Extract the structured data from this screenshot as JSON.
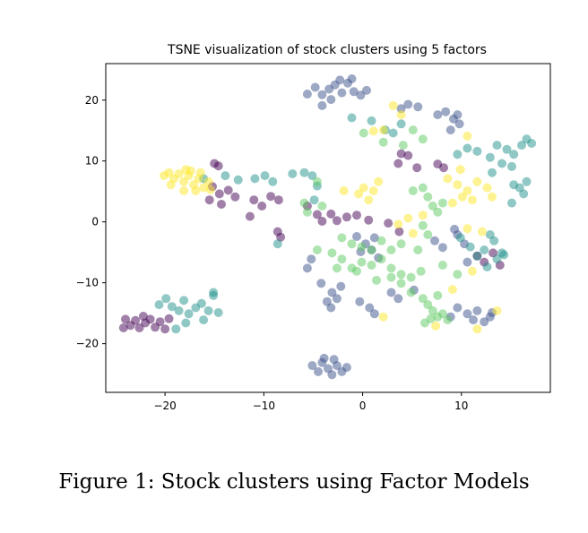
{
  "caption": "Figure 1: Stock clusters using Factor Models",
  "chart_data": {
    "type": "scatter",
    "title": "TSNE visualization of stock clusters using 5 factors",
    "xlabel": "",
    "ylabel": "",
    "xlim": [
      -26,
      19
    ],
    "ylim": [
      -28,
      26
    ],
    "xticks": [
      -20,
      -10,
      0,
      10
    ],
    "yticks": [
      -20,
      -10,
      0,
      10,
      20
    ],
    "xtick_labels": [
      "−20",
      "−10",
      "0",
      "10"
    ],
    "ytick_labels": [
      "−20",
      "−10",
      "0",
      "10",
      "20"
    ],
    "grid": false,
    "legend": "none",
    "colormap": "viridis",
    "point_alpha": 0.5,
    "series": [
      {
        "color": "#440154",
        "points": [
          [
            -24,
            -16
          ],
          [
            -23.5,
            -17
          ],
          [
            -23,
            -16.2
          ],
          [
            -22.6,
            -17.4
          ],
          [
            -22,
            -16.6
          ],
          [
            -21.5,
            -16
          ],
          [
            -21,
            -17.3
          ],
          [
            -20.5,
            -16.4
          ],
          [
            -20,
            -17.6
          ],
          [
            -19.6,
            -15.9
          ],
          [
            -24.2,
            -17.4
          ],
          [
            -22.2,
            -15.5
          ],
          [
            -15,
            9.6
          ],
          [
            -14.6,
            9.2
          ],
          [
            -15.2,
            5.8
          ],
          [
            -14.5,
            4.6
          ],
          [
            -15.5,
            3.6
          ],
          [
            -14.3,
            2.9
          ],
          [
            -13.6,
            5.2
          ],
          [
            -12.9,
            4.1
          ],
          [
            -11,
            3.6
          ],
          [
            -10.2,
            2.6
          ],
          [
            -11.4,
            0.9
          ],
          [
            -9.3,
            4.2
          ],
          [
            -8.5,
            3.6
          ],
          [
            -8.6,
            -1.6
          ],
          [
            -8.3,
            -2.5
          ],
          [
            -5.6,
            2.6
          ],
          [
            -4.6,
            1.2
          ],
          [
            -4.1,
            0.1
          ],
          [
            -3.2,
            1.3
          ],
          [
            -2.6,
            0.2
          ],
          [
            -1.6,
            0.8
          ],
          [
            -0.6,
            1.1
          ],
          [
            0.6,
            0.3
          ],
          [
            3.9,
            11.2
          ],
          [
            4.6,
            10.9
          ],
          [
            3.6,
            9.6
          ],
          [
            5.5,
            8.9
          ],
          [
            7.6,
            9.5
          ],
          [
            8.2,
            8.9
          ],
          [
            2.6,
            -0.2
          ],
          [
            3.7,
            -1.6
          ],
          [
            11.6,
            -5.6
          ],
          [
            12.3,
            -6.6
          ],
          [
            13.2,
            -5.1
          ],
          [
            13.9,
            -7.1
          ]
        ]
      },
      {
        "color": "#3b528b",
        "points": [
          [
            -5.6,
            21
          ],
          [
            -4.8,
            22.1
          ],
          [
            -4.1,
            20.9
          ],
          [
            -3.4,
            21.8
          ],
          [
            -2.8,
            22.5
          ],
          [
            -2.1,
            21.2
          ],
          [
            -1.5,
            22.8
          ],
          [
            -0.9,
            21.4
          ],
          [
            -0.2,
            20.8
          ],
          [
            -3.2,
            20.1
          ],
          [
            -2.3,
            23.3
          ],
          [
            -1.1,
            23.5
          ],
          [
            0.4,
            21.6
          ],
          [
            -4.1,
            19.1
          ],
          [
            3.9,
            18.6
          ],
          [
            4.6,
            19.3
          ],
          [
            5.6,
            18.9
          ],
          [
            7.6,
            17.6
          ],
          [
            8.4,
            18.1
          ],
          [
            9.2,
            16.9
          ],
          [
            9.6,
            17.6
          ],
          [
            8.9,
            15.1
          ],
          [
            9.8,
            16.1
          ],
          [
            -0.6,
            -2.4
          ],
          [
            0.3,
            -3.6
          ],
          [
            1.2,
            -2.6
          ],
          [
            -0.2,
            -4.9
          ],
          [
            1.6,
            -5.9
          ],
          [
            0.9,
            -4.6
          ],
          [
            -5.2,
            -6.1
          ],
          [
            -5.6,
            -7.6
          ],
          [
            -4.2,
            -10.1
          ],
          [
            -3.1,
            -11.6
          ],
          [
            -2.6,
            -12.6
          ],
          [
            -3.6,
            -13.1
          ],
          [
            -2.2,
            -10.6
          ],
          [
            -3.2,
            -14.1
          ],
          [
            -0.3,
            -13.1
          ],
          [
            0.7,
            -14.1
          ],
          [
            1.2,
            -15.1
          ],
          [
            2.9,
            -11.6
          ],
          [
            3.6,
            -12.6
          ],
          [
            5.2,
            -11.2
          ],
          [
            7.3,
            -3.1
          ],
          [
            8.1,
            -4.2
          ],
          [
            9.6,
            -2.1
          ],
          [
            10.3,
            -3.6
          ],
          [
            9.3,
            -1.2
          ],
          [
            10.6,
            -6.6
          ],
          [
            9.6,
            -14.1
          ],
          [
            10.6,
            -15.1
          ],
          [
            11.2,
            -16.1
          ],
          [
            12.3,
            -16.4
          ],
          [
            11.6,
            -14.6
          ],
          [
            13.1,
            -14.9
          ],
          [
            12.9,
            -15.6
          ],
          [
            8.9,
            -15.6
          ],
          [
            -5.1,
            -23.6
          ],
          [
            -4.5,
            -24.6
          ],
          [
            -4.1,
            -23.1
          ],
          [
            -3.5,
            -24.1
          ],
          [
            -3.1,
            -25.1
          ],
          [
            -2.6,
            -23.6
          ],
          [
            -2.1,
            -24.6
          ],
          [
            -1.6,
            -23.9
          ],
          [
            -3.9,
            -22.4
          ],
          [
            -2.9,
            -22.6
          ]
        ]
      },
      {
        "color": "#21918c",
        "points": [
          [
            -20.6,
            -13.6
          ],
          [
            -19.9,
            -12.6
          ],
          [
            -19.3,
            -13.9
          ],
          [
            -18.6,
            -14.6
          ],
          [
            -18.1,
            -12.9
          ],
          [
            -17.6,
            -15.1
          ],
          [
            -16.9,
            -14.1
          ],
          [
            -16.3,
            -13.4
          ],
          [
            -15.6,
            -14.6
          ],
          [
            -15.1,
            -12.1
          ],
          [
            -14.6,
            -14.9
          ],
          [
            -16.1,
            -16.1
          ],
          [
            -17.9,
            -16.6
          ],
          [
            -18.9,
            -17.6
          ],
          [
            -15.1,
            -11.6
          ],
          [
            -16.1,
            7.1
          ],
          [
            -13.9,
            7.6
          ],
          [
            -12.6,
            6.9
          ],
          [
            -10.9,
            7.1
          ],
          [
            -9.9,
            7.6
          ],
          [
            -9.1,
            6.6
          ],
          [
            -7.1,
            7.9
          ],
          [
            -5.9,
            8.1
          ],
          [
            -5.1,
            7.6
          ],
          [
            -4.6,
            5.9
          ],
          [
            -4.9,
            3.6
          ],
          [
            -8.6,
            -3.6
          ],
          [
            -1.1,
            17.1
          ],
          [
            0.9,
            16.6
          ],
          [
            2.3,
            15.1
          ],
          [
            3.1,
            14.6
          ],
          [
            3.9,
            16.1
          ],
          [
            9.6,
            11.1
          ],
          [
            10.6,
            12.1
          ],
          [
            11.6,
            11.6
          ],
          [
            12.9,
            10.6
          ],
          [
            13.6,
            12.6
          ],
          [
            14.6,
            11.9
          ],
          [
            15.3,
            11.1
          ],
          [
            16.1,
            12.6
          ],
          [
            16.6,
            13.6
          ],
          [
            17.1,
            12.9
          ],
          [
            14.1,
            9.6
          ],
          [
            15.1,
            9.1
          ],
          [
            13.1,
            8.1
          ],
          [
            16.3,
            4.6
          ],
          [
            15.9,
            5.6
          ],
          [
            15.1,
            3.1
          ],
          [
            16.6,
            6.6
          ],
          [
            15.3,
            6.1
          ],
          [
            9.9,
            -2.6
          ],
          [
            10.9,
            -4.1
          ],
          [
            11.6,
            -5.6
          ],
          [
            12.3,
            -4.6
          ],
          [
            13.3,
            -3.1
          ],
          [
            12.9,
            -2.1
          ],
          [
            14.1,
            -5.1
          ],
          [
            13.6,
            -6.1
          ],
          [
            12.6,
            -7.4
          ],
          [
            14.3,
            -5.4
          ]
        ]
      },
      {
        "color": "#5ec962",
        "points": [
          [
            -2.1,
            -2.6
          ],
          [
            -1.1,
            -3.6
          ],
          [
            -0.1,
            -4.1
          ],
          [
            0.9,
            -4.6
          ],
          [
            1.9,
            -3.1
          ],
          [
            2.9,
            -4.6
          ],
          [
            3.9,
            -3.6
          ],
          [
            1.9,
            -6.1
          ],
          [
            0.9,
            -7.1
          ],
          [
            -0.1,
            -6.6
          ],
          [
            -1.1,
            -7.6
          ],
          [
            -2.1,
            -6.1
          ],
          [
            -3.1,
            -5.1
          ],
          [
            -0.6,
            -8.1
          ],
          [
            2.9,
            -7.6
          ],
          [
            3.9,
            -8.6
          ],
          [
            4.9,
            -9.1
          ],
          [
            5.9,
            -8.1
          ],
          [
            -2.6,
            -7.6
          ],
          [
            -4.6,
            -4.6
          ],
          [
            1.4,
            -9.6
          ],
          [
            6.1,
            -12.6
          ],
          [
            6.6,
            -13.6
          ],
          [
            7.1,
            -14.6
          ],
          [
            7.6,
            -15.6
          ],
          [
            6.3,
            -16.6
          ],
          [
            8.1,
            -15.1
          ],
          [
            8.6,
            -16.1
          ],
          [
            6.9,
            -15.9
          ],
          [
            7.6,
            -12.1
          ],
          [
            2.9,
            -9.1
          ],
          [
            3.9,
            -10.1
          ],
          [
            4.9,
            -11.6
          ],
          [
            5.1,
            5.1
          ],
          [
            6.1,
            5.6
          ],
          [
            6.6,
            4.1
          ],
          [
            7.1,
            2.6
          ],
          [
            7.6,
            1.6
          ],
          [
            8.1,
            3.1
          ],
          [
            6.1,
            -0.6
          ],
          [
            6.6,
            -2.1
          ],
          [
            5.6,
            -4.6
          ],
          [
            -4.6,
            6.6
          ],
          [
            -4.1,
            2.6
          ],
          [
            -5.6,
            1.6
          ],
          [
            -5.9,
            3.1
          ],
          [
            0.1,
            14.6
          ],
          [
            2.1,
            13.1
          ],
          [
            4.1,
            12.6
          ],
          [
            5.1,
            15.1
          ],
          [
            6.1,
            13.6
          ],
          [
            8.1,
            -7.1
          ],
          [
            9.6,
            -8.6
          ]
        ]
      },
      {
        "color": "#fde725",
        "points": [
          [
            -20.1,
            7.6
          ],
          [
            -19.6,
            8.1
          ],
          [
            -19.1,
            7.1
          ],
          [
            -18.6,
            7.9
          ],
          [
            -18.1,
            6.6
          ],
          [
            -17.6,
            7.6
          ],
          [
            -17.1,
            6.1
          ],
          [
            -16.6,
            7.1
          ],
          [
            -16.1,
            5.6
          ],
          [
            -15.6,
            6.6
          ],
          [
            -18.1,
            5.1
          ],
          [
            -17.4,
            8.4
          ],
          [
            -16.9,
            5.1
          ],
          [
            -19.4,
            6.1
          ],
          [
            -17.9,
            8.6
          ],
          [
            -16.4,
            8.1
          ],
          [
            -15.4,
            5.3
          ],
          [
            3.1,
            19.1
          ],
          [
            3.9,
            17.6
          ],
          [
            2.1,
            15.1
          ],
          [
            1.1,
            14.9
          ],
          [
            8.6,
            7.1
          ],
          [
            9.6,
            6.1
          ],
          [
            10.6,
            5.1
          ],
          [
            11.6,
            6.6
          ],
          [
            12.6,
            5.6
          ],
          [
            10.1,
            4.1
          ],
          [
            9.1,
            3.1
          ],
          [
            11.1,
            3.6
          ],
          [
            13.1,
            4.1
          ],
          [
            9.9,
            8.6
          ],
          [
            10.6,
            14.1
          ],
          [
            0.1,
            5.6
          ],
          [
            1.1,
            5.1
          ],
          [
            -0.4,
            4.6
          ],
          [
            1.6,
            6.6
          ],
          [
            0.6,
            3.6
          ],
          [
            -1.9,
            5.1
          ],
          [
            4.6,
            0.6
          ],
          [
            3.6,
            -0.4
          ],
          [
            5.1,
            -1.9
          ],
          [
            6.1,
            1.1
          ],
          [
            10.6,
            -1.1
          ],
          [
            12.1,
            -1.6
          ],
          [
            11.1,
            -8.1
          ],
          [
            13.6,
            -14.6
          ],
          [
            11.6,
            -17.6
          ],
          [
            2.1,
            -15.6
          ],
          [
            7.4,
            -17.1
          ],
          [
            9.1,
            -11.1
          ]
        ]
      }
    ]
  }
}
